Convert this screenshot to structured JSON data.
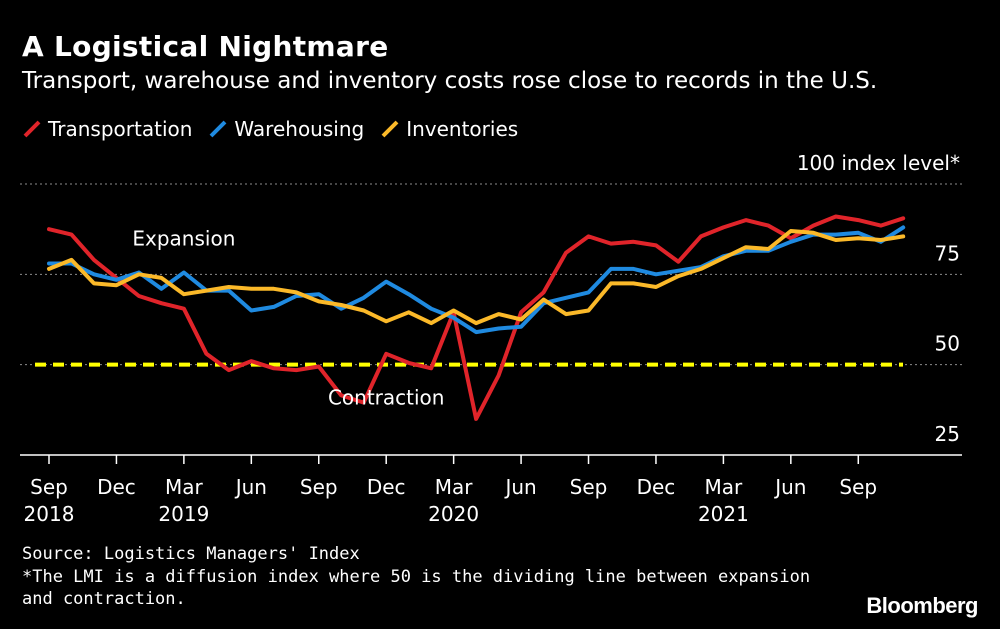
{
  "chart_data": {
    "type": "line",
    "title": "A Logistical Nightmare",
    "subtitle": "Transport, warehouse and inventory costs rose close to records in the U.S.",
    "ylim": [
      25,
      100
    ],
    "y_ticks": [
      {
        "value": 100,
        "label": "100 index level*"
      },
      {
        "value": 75,
        "label": "75"
      },
      {
        "value": 50,
        "label": "50"
      },
      {
        "value": 25,
        "label": "25"
      }
    ],
    "x_ticks": [
      {
        "month": "2018-09",
        "label": "Sep",
        "year": "2018"
      },
      {
        "month": "2018-12",
        "label": "Dec",
        "year": ""
      },
      {
        "month": "2019-03",
        "label": "Mar",
        "year": "2019"
      },
      {
        "month": "2019-06",
        "label": "Jun",
        "year": ""
      },
      {
        "month": "2019-09",
        "label": "Sep",
        "year": ""
      },
      {
        "month": "2019-12",
        "label": "Dec",
        "year": ""
      },
      {
        "month": "2020-03",
        "label": "Mar",
        "year": "2020"
      },
      {
        "month": "2020-06",
        "label": "Jun",
        "year": ""
      },
      {
        "month": "2020-09",
        "label": "Sep",
        "year": ""
      },
      {
        "month": "2020-12",
        "label": "Dec",
        "year": ""
      },
      {
        "month": "2021-03",
        "label": "Mar",
        "year": "2021"
      },
      {
        "month": "2021-06",
        "label": "Jun",
        "year": ""
      },
      {
        "month": "2021-09",
        "label": "Sep",
        "year": ""
      }
    ],
    "x": [
      "2018-09",
      "2018-10",
      "2018-11",
      "2018-12",
      "2019-01",
      "2019-02",
      "2019-03",
      "2019-04",
      "2019-05",
      "2019-06",
      "2019-07",
      "2019-08",
      "2019-09",
      "2019-10",
      "2019-11",
      "2019-12",
      "2020-01",
      "2020-02",
      "2020-03",
      "2020-04",
      "2020-05",
      "2020-06",
      "2020-07",
      "2020-08",
      "2020-09",
      "2020-10",
      "2020-11",
      "2020-12",
      "2021-01",
      "2021-02",
      "2021-03",
      "2021-04",
      "2021-05",
      "2021-06",
      "2021-07",
      "2021-08",
      "2021-09",
      "2021-10",
      "2021-11"
    ],
    "series": [
      {
        "name": "Transportation",
        "color": "#e0242a",
        "values": [
          87.5,
          86,
          79,
          74,
          69,
          67,
          65.5,
          53,
          48.5,
          51,
          49,
          48.5,
          49.5,
          41.5,
          39.5,
          53,
          50.5,
          49,
          64.5,
          35,
          47,
          64.5,
          70,
          81,
          85.5,
          83.5,
          84,
          83,
          78.5,
          85.5,
          88,
          90,
          88.5,
          85,
          88.5,
          91,
          90,
          88.5,
          90.5
        ]
      },
      {
        "name": "Warehousing",
        "color": "#1f8ae0",
        "values": [
          78,
          78,
          75,
          73.5,
          75.5,
          71,
          75.5,
          70.5,
          70.5,
          65,
          66,
          69,
          69.5,
          65.5,
          68.5,
          73,
          69.5,
          65.5,
          63,
          59,
          60,
          60.5,
          67,
          68.5,
          70,
          76.5,
          76.5,
          75,
          76,
          77,
          80,
          81.5,
          81.5,
          84,
          86,
          86,
          86.5,
          84,
          88
        ]
      },
      {
        "name": "Inventories",
        "color": "#fbb929",
        "values": [
          76.5,
          79,
          72.5,
          72,
          75,
          74,
          69.5,
          70.5,
          71.5,
          71,
          71,
          70,
          67.5,
          66.5,
          65,
          62,
          64.5,
          61.5,
          65,
          61.5,
          64,
          62.5,
          68,
          64,
          65,
          72.5,
          72.5,
          71.5,
          74.5,
          76.5,
          79.5,
          82.5,
          82,
          87,
          86.5,
          84.5,
          85,
          84.5,
          85.5
        ]
      }
    ],
    "reference_line": {
      "value": 50,
      "color": "#ffff00",
      "style": "dashed"
    },
    "annotations": [
      {
        "text": "Expansion",
        "month": "2019-03",
        "value": 83
      },
      {
        "text": "Contraction",
        "month": "2019-12",
        "value": 39
      }
    ],
    "grid": true,
    "legend_position": "top-left"
  },
  "source": "Source: Logistics Managers' Index",
  "note": "*The LMI is a diffusion index where 50 is the dividing line between expansion and contraction.",
  "brand": "Bloomberg"
}
